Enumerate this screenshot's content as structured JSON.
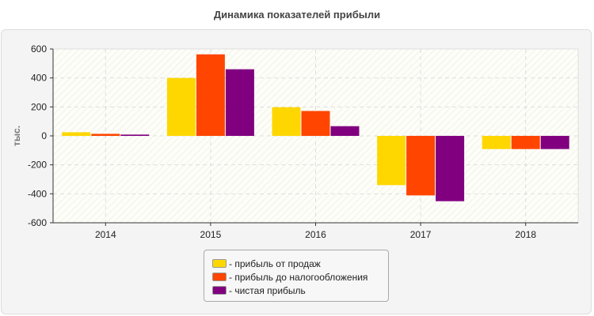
{
  "chart_data": {
    "type": "bar",
    "title": "Динамика показателей прибыли",
    "ylabel": "тыс.",
    "xlabel": "",
    "categories": [
      "2014",
      "2015",
      "2016",
      "2017",
      "2018"
    ],
    "ylim": [
      -600,
      600
    ],
    "yticks": [
      600,
      400,
      200,
      0,
      -200,
      -400,
      -600
    ],
    "grid": true,
    "legend_position": "bottom",
    "series": [
      {
        "name": "прибыль от продаж",
        "color": "#FFD700",
        "values": [
          25,
          400,
          198,
          -340,
          -91
        ]
      },
      {
        "name": "прибыль до налогообложения",
        "color": "#FF4500",
        "values": [
          14,
          563,
          172,
          -411,
          -91
        ]
      },
      {
        "name": "чистая прибыль",
        "color": "#800080",
        "values": [
          9,
          460,
          67,
          -451,
          -91
        ]
      }
    ]
  }
}
